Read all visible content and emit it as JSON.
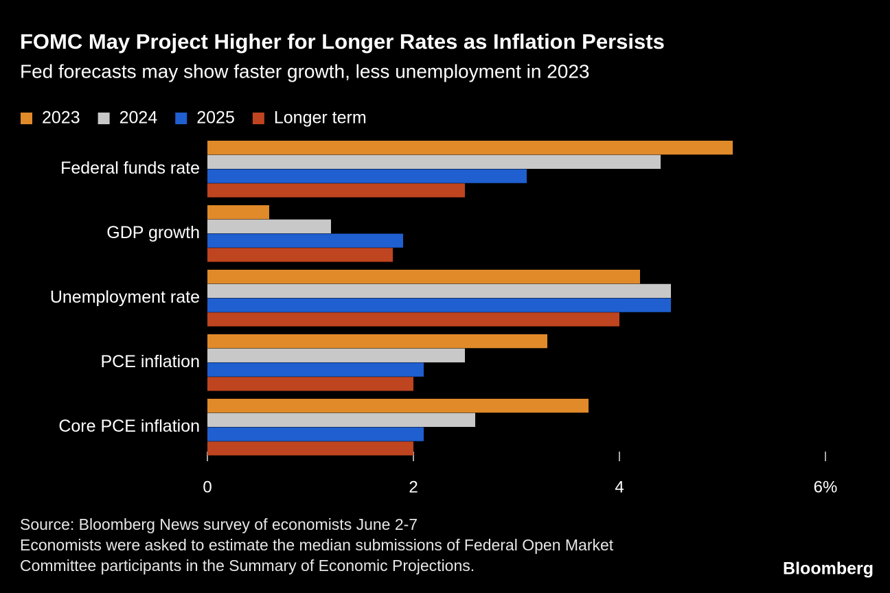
{
  "chart_data": {
    "type": "hbar",
    "title": "FOMC May Project Higher for Longer Rates as Inflation Persists",
    "subtitle": "Fed forecasts may show faster growth, less unemployment in 2023",
    "categories": [
      "Federal funds rate",
      "GDP growth",
      "Unemployment rate",
      "PCE inflation",
      "Core PCE inflation"
    ],
    "series": [
      {
        "name": "2023",
        "color": "#e08a2a",
        "values": [
          5.1,
          0.6,
          4.2,
          3.3,
          3.7
        ]
      },
      {
        "name": "2024",
        "color": "#c8c8c8",
        "values": [
          4.4,
          1.2,
          4.5,
          2.5,
          2.6
        ]
      },
      {
        "name": "2025",
        "color": "#1f5fd0",
        "values": [
          3.1,
          1.9,
          4.5,
          2.1,
          2.1
        ]
      },
      {
        "name": "Longer term",
        "color": "#bf4420",
        "values": [
          2.5,
          1.8,
          4.0,
          2.0,
          2.0
        ]
      }
    ],
    "xlim": [
      0,
      6
    ],
    "xticks": [
      0,
      2,
      4,
      {
        "value": 6,
        "label": "6%"
      }
    ],
    "legend": "top-left",
    "notes": [
      "Source: Bloomberg News survey of economists June 2-7",
      "Economists were asked to estimate the median submissions of Federal Open Market",
      "Committee participants in the Summary of Economic Projections."
    ],
    "brand": "Bloomberg"
  }
}
